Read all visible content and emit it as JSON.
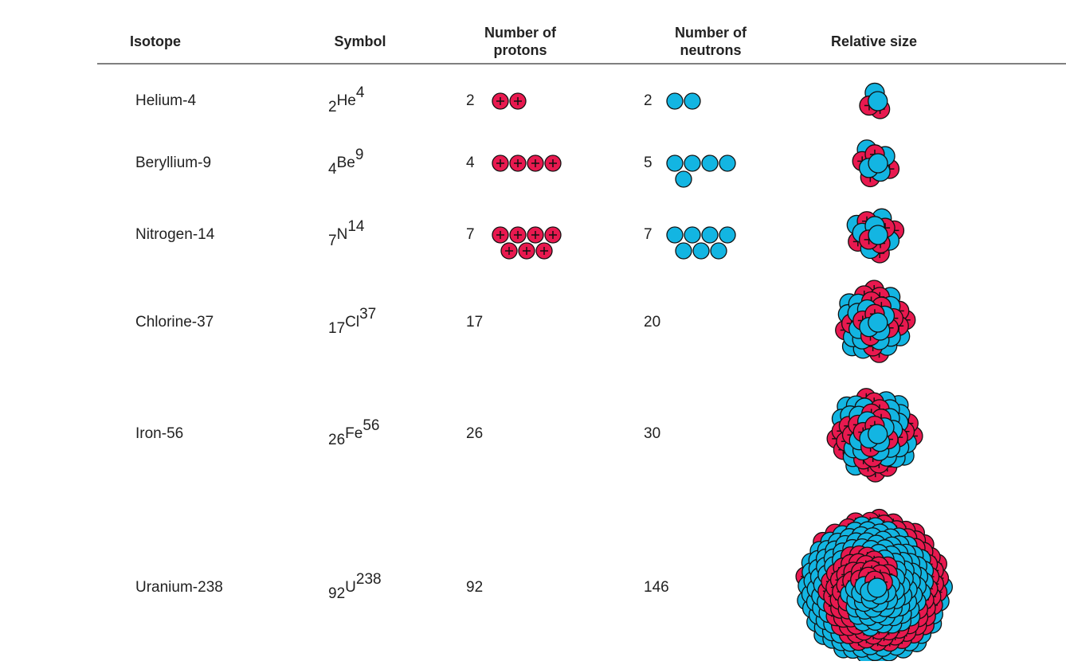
{
  "table": {
    "headers": [
      "Isotope",
      "Symbol",
      "Number of protons",
      "Number of neutrons",
      "Relative size"
    ],
    "rows": [
      {
        "isotope": "Helium-4",
        "symbol": {
          "z": "2",
          "element": "He",
          "a": "4"
        },
        "protons": 2,
        "neutrons": 2
      },
      {
        "isotope": "Beryllium-9",
        "symbol": {
          "z": "4",
          "element": "Be",
          "a": "9"
        },
        "protons": 4,
        "neutrons": 5
      },
      {
        "isotope": "Nitrogen-14",
        "symbol": {
          "z": "7",
          "element": "N",
          "a": "14"
        },
        "protons": 7,
        "neutrons": 7
      },
      {
        "isotope": "Chlorine-37",
        "symbol": {
          "z": "17",
          "element": "Cl",
          "a": "37"
        },
        "protons": 17,
        "neutrons": 20
      },
      {
        "isotope": "Iron-56",
        "symbol": {
          "z": "26",
          "element": "Fe",
          "a": "56"
        },
        "protons": 26,
        "neutrons": 30
      },
      {
        "isotope": "Uranium-238",
        "symbol": {
          "z": "92",
          "element": "U",
          "a": "238"
        },
        "protons": 92,
        "neutrons": 146
      }
    ]
  }
}
